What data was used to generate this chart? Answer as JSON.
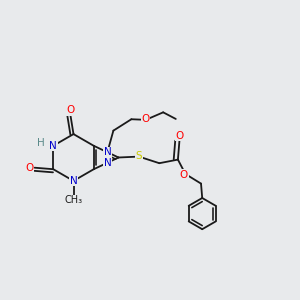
{
  "background_color": "#e8eaec",
  "colors": {
    "N": "#0000cc",
    "O": "#ff0000",
    "S": "#cccc00",
    "C": "#1a1a1a",
    "H": "#5a8a8a",
    "bond": "#1a1a1a"
  },
  "lw": 1.3,
  "fs": 7.5
}
